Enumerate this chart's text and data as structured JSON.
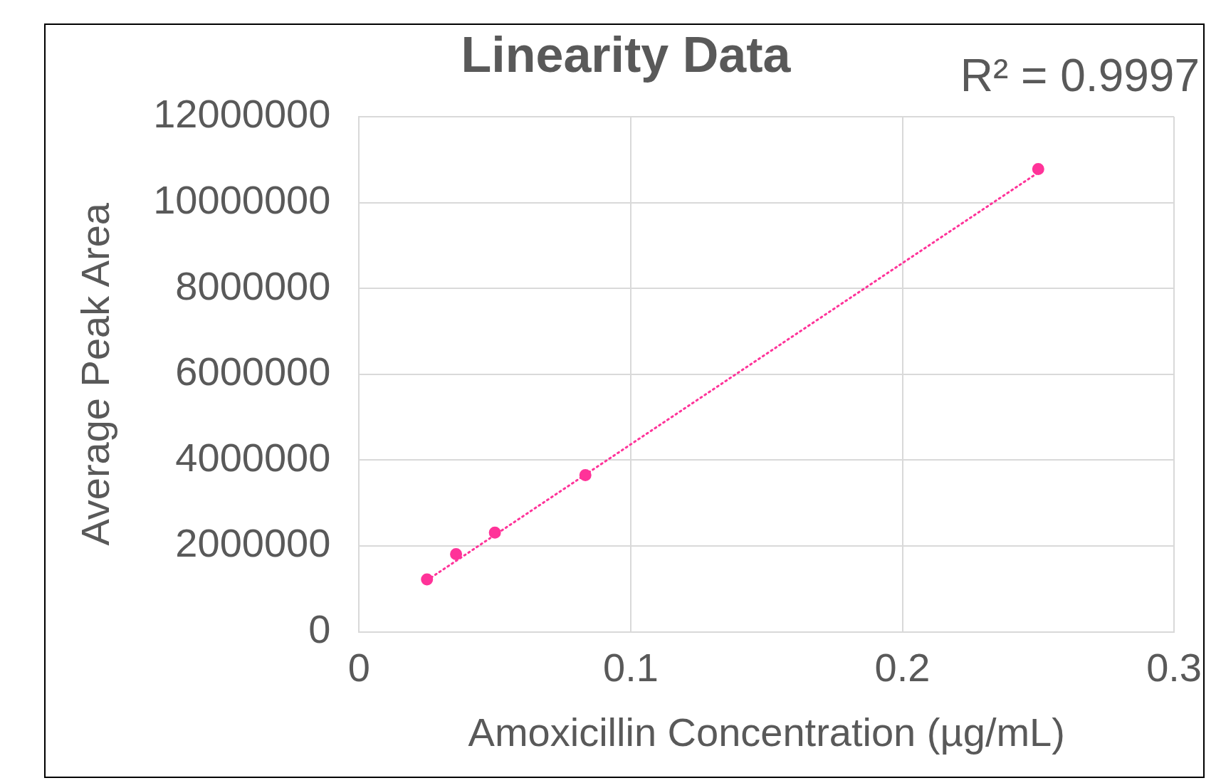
{
  "chart_data": {
    "type": "scatter",
    "title": "Linearity Data",
    "xlabel": "Amoxicillin Concentration (µg/mL)",
    "ylabel": "Average Peak Area",
    "annotations": [
      "R² = 0.9997"
    ],
    "series": [
      {
        "type": "scatter",
        "color": "#ff3399",
        "x": [
          0.025,
          0.0357,
          0.05,
          0.0833,
          0.25
        ],
        "values": [
          1220000,
          1810000,
          2310000,
          3650000,
          10780000
        ],
        "marker": "circle"
      },
      {
        "type": "line",
        "color": "#ff3399",
        "x": [
          0.025,
          0.25
        ],
        "values": [
          1200000,
          10700000
        ],
        "marker": "none",
        "line_style": "dotted"
      }
    ],
    "xlim": [
      0,
      0.3
    ],
    "xticks": [
      0,
      0.1,
      0.2,
      0.3
    ],
    "ylim": [
      0,
      12000000
    ],
    "yticks": [
      0,
      2000000,
      4000000,
      6000000,
      8000000,
      10000000,
      12000000
    ],
    "grid": true,
    "legend": false
  }
}
